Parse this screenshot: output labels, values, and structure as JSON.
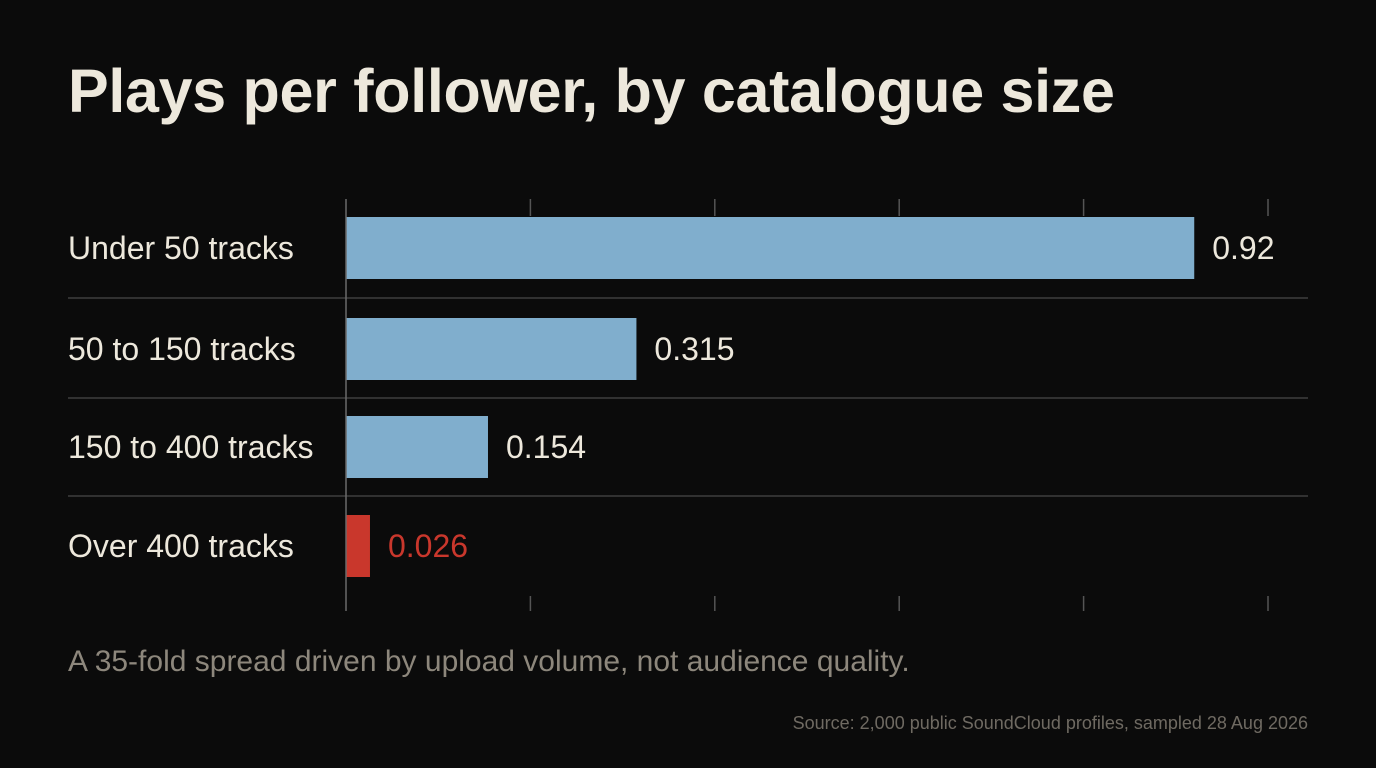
{
  "title": "Plays per follower, by catalogue size",
  "subtitle": "A 35-fold spread driven by upload volume, not audience quality.",
  "source": "Source: 2,000 public SoundCloud profiles, sampled 28 Aug 2026",
  "colors": {
    "background": "#0b0b0b",
    "bar": "#80aecd",
    "highlight": "#c9372c",
    "text": "#ede8dc",
    "grid": "#3e3e3e"
  },
  "chart_data": {
    "type": "bar",
    "orientation": "horizontal",
    "categories": [
      "Under 50 tracks",
      "50 to 150 tracks",
      "150 to 400 tracks",
      "Over 400 tracks"
    ],
    "values": [
      0.92,
      0.315,
      0.154,
      0.026
    ],
    "value_labels": [
      "0.92",
      "0.315",
      "0.154",
      "0.026"
    ],
    "highlight_index": 3,
    "xlim": [
      0,
      1
    ],
    "grid": false
  }
}
